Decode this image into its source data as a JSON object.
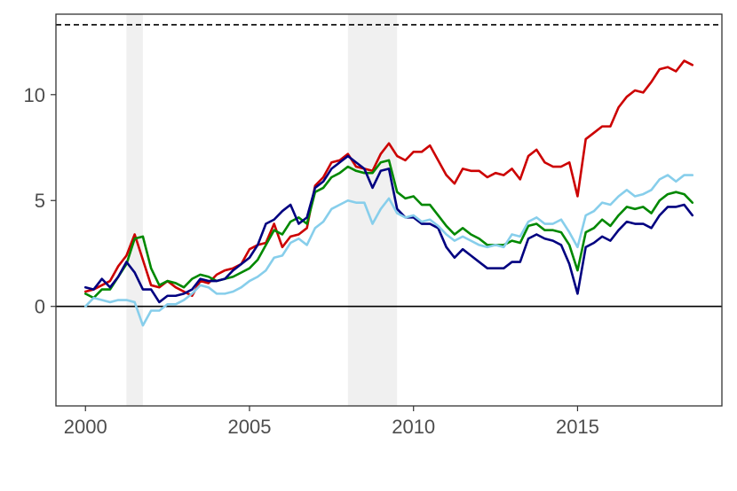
{
  "chart_data": {
    "type": "line",
    "title": "",
    "xlabel": "",
    "ylabel": "",
    "xlim": [
      1999.1,
      2019.4
    ],
    "ylim": [
      -4.7,
      13.8
    ],
    "x_ticks": [
      2000,
      2005,
      2010,
      2015
    ],
    "x_tick_labels": [
      "2000",
      "2005",
      "2010",
      "2015"
    ],
    "y_ticks": [
      0,
      5,
      10
    ],
    "y_tick_labels": [
      "0",
      "5",
      "10"
    ],
    "grid": false,
    "legend": "none",
    "recession_bands": [
      [
        2001.25,
        2001.75
      ],
      [
        2008.0,
        2009.5
      ]
    ],
    "reference_lines": [
      {
        "y": 0,
        "style": "solid",
        "color": "#000000"
      },
      {
        "y": 13.3,
        "style": "dashed",
        "color": "#000000"
      }
    ],
    "series": [
      {
        "color": "#cc0000",
        "x": [
          2000.0,
          2000.25,
          2000.5,
          2000.75,
          2001.0,
          2001.25,
          2001.5,
          2001.75,
          2002.0,
          2002.25,
          2002.5,
          2002.75,
          2003.0,
          2003.25,
          2003.5,
          2003.75,
          2004.0,
          2004.25,
          2004.5,
          2004.75,
          2005.0,
          2005.25,
          2005.5,
          2005.75,
          2006.0,
          2006.25,
          2006.5,
          2006.75,
          2007.0,
          2007.25,
          2007.5,
          2007.75,
          2008.0,
          2008.25,
          2008.5,
          2008.75,
          2009.0,
          2009.25,
          2009.5,
          2009.75,
          2010.0,
          2010.25,
          2010.5,
          2010.75,
          2011.0,
          2011.25,
          2011.5,
          2011.75,
          2012.0,
          2012.25,
          2012.5,
          2012.75,
          2013.0,
          2013.25,
          2013.5,
          2013.75,
          2014.0,
          2014.25,
          2014.5,
          2014.75,
          2015.0,
          2015.25,
          2015.5,
          2015.75,
          2016.0,
          2016.25,
          2016.5,
          2016.75,
          2017.0,
          2017.25,
          2017.5,
          2017.75,
          2018.0,
          2018.25,
          2018.5
        ],
        "values": [
          0.7,
          0.8,
          1.0,
          1.2,
          1.9,
          2.4,
          3.4,
          2.2,
          1.0,
          0.9,
          1.2,
          0.9,
          0.7,
          0.5,
          1.2,
          1.1,
          1.5,
          1.7,
          1.8,
          2.0,
          2.7,
          2.9,
          3.0,
          3.9,
          2.8,
          3.3,
          3.4,
          3.7,
          5.7,
          6.1,
          6.8,
          6.9,
          7.2,
          6.6,
          6.5,
          6.4,
          7.2,
          7.7,
          7.1,
          6.9,
          7.3,
          7.3,
          7.6,
          6.9,
          6.2,
          5.8,
          6.5,
          6.4,
          6.4,
          6.1,
          6.3,
          6.2,
          6.5,
          6.0,
          7.1,
          7.4,
          6.8,
          6.6,
          6.6,
          6.8,
          5.2,
          7.9,
          8.2,
          8.5,
          8.5,
          9.4,
          9.9,
          10.2,
          10.1,
          10.6,
          11.2,
          11.3,
          11.1,
          11.6,
          11.4
        ]
      },
      {
        "color": "#008800",
        "x": [
          2000.0,
          2000.25,
          2000.5,
          2000.75,
          2001.0,
          2001.25,
          2001.5,
          2001.75,
          2002.0,
          2002.25,
          2002.5,
          2002.75,
          2003.0,
          2003.25,
          2003.5,
          2003.75,
          2004.0,
          2004.25,
          2004.5,
          2004.75,
          2005.0,
          2005.25,
          2005.5,
          2005.75,
          2006.0,
          2006.25,
          2006.5,
          2006.75,
          2007.0,
          2007.25,
          2007.5,
          2007.75,
          2008.0,
          2008.25,
          2008.5,
          2008.75,
          2009.0,
          2009.25,
          2009.5,
          2009.75,
          2010.0,
          2010.25,
          2010.5,
          2010.75,
          2011.0,
          2011.25,
          2011.5,
          2011.75,
          2012.0,
          2012.25,
          2012.5,
          2012.75,
          2013.0,
          2013.25,
          2013.5,
          2013.75,
          2014.0,
          2014.25,
          2014.5,
          2014.75,
          2015.0,
          2015.25,
          2015.5,
          2015.75,
          2016.0,
          2016.25,
          2016.5,
          2016.75,
          2017.0,
          2017.25,
          2017.5,
          2017.75,
          2018.0,
          2018.25,
          2018.5
        ],
        "values": [
          0.6,
          0.4,
          0.8,
          0.8,
          1.4,
          2.0,
          3.2,
          3.3,
          1.8,
          1.0,
          1.2,
          1.1,
          0.9,
          1.3,
          1.5,
          1.4,
          1.2,
          1.3,
          1.4,
          1.6,
          1.8,
          2.2,
          2.9,
          3.6,
          3.4,
          4.0,
          4.2,
          3.9,
          5.4,
          5.6,
          6.1,
          6.3,
          6.6,
          6.4,
          6.3,
          6.3,
          6.8,
          6.9,
          5.4,
          5.1,
          5.2,
          4.8,
          4.8,
          4.3,
          3.8,
          3.4,
          3.7,
          3.4,
          3.2,
          2.9,
          2.9,
          2.9,
          3.1,
          3.0,
          3.8,
          3.9,
          3.6,
          3.6,
          3.5,
          2.9,
          1.7,
          3.5,
          3.7,
          4.1,
          3.8,
          4.3,
          4.7,
          4.6,
          4.7,
          4.4,
          5.0,
          5.3,
          5.4,
          5.3,
          4.9
        ]
      },
      {
        "color": "#000080",
        "x": [
          2000.0,
          2000.25,
          2000.5,
          2000.75,
          2001.0,
          2001.25,
          2001.5,
          2001.75,
          2002.0,
          2002.25,
          2002.5,
          2002.75,
          2003.0,
          2003.25,
          2003.5,
          2003.75,
          2004.0,
          2004.25,
          2004.5,
          2004.75,
          2005.0,
          2005.25,
          2005.5,
          2005.75,
          2006.0,
          2006.25,
          2006.5,
          2006.75,
          2007.0,
          2007.25,
          2007.5,
          2007.75,
          2008.0,
          2008.25,
          2008.5,
          2008.75,
          2009.0,
          2009.25,
          2009.5,
          2009.75,
          2010.0,
          2010.25,
          2010.5,
          2010.75,
          2011.0,
          2011.25,
          2011.5,
          2011.75,
          2012.0,
          2012.25,
          2012.5,
          2012.75,
          2013.0,
          2013.25,
          2013.5,
          2013.75,
          2014.0,
          2014.25,
          2014.5,
          2014.75,
          2015.0,
          2015.25,
          2015.5,
          2015.75,
          2016.0,
          2016.25,
          2016.5,
          2016.75,
          2017.0,
          2017.25,
          2017.5,
          2017.75,
          2018.0,
          2018.25,
          2018.5
        ],
        "values": [
          0.9,
          0.8,
          1.3,
          0.9,
          1.4,
          2.1,
          1.6,
          0.8,
          0.8,
          0.2,
          0.5,
          0.5,
          0.6,
          0.8,
          1.3,
          1.2,
          1.2,
          1.3,
          1.7,
          2.0,
          2.3,
          2.9,
          3.9,
          4.1,
          4.5,
          4.8,
          3.9,
          4.2,
          5.6,
          5.9,
          6.5,
          6.8,
          7.1,
          6.8,
          6.5,
          5.6,
          6.4,
          6.5,
          4.6,
          4.2,
          4.2,
          3.9,
          3.9,
          3.7,
          2.8,
          2.3,
          2.7,
          2.4,
          2.1,
          1.8,
          1.8,
          1.8,
          2.1,
          2.1,
          3.2,
          3.4,
          3.2,
          3.1,
          2.9,
          2.0,
          0.6,
          2.8,
          3.0,
          3.3,
          3.1,
          3.6,
          4.0,
          3.9,
          3.9,
          3.7,
          4.3,
          4.7,
          4.7,
          4.8,
          4.3
        ]
      },
      {
        "color": "#87ceeb",
        "x": [
          2000.0,
          2000.25,
          2000.5,
          2000.75,
          2001.0,
          2001.25,
          2001.5,
          2001.75,
          2002.0,
          2002.25,
          2002.5,
          2002.75,
          2003.0,
          2003.25,
          2003.5,
          2003.75,
          2004.0,
          2004.25,
          2004.5,
          2004.75,
          2005.0,
          2005.25,
          2005.5,
          2005.75,
          2006.0,
          2006.25,
          2006.5,
          2006.75,
          2007.0,
          2007.25,
          2007.5,
          2007.75,
          2008.0,
          2008.25,
          2008.5,
          2008.75,
          2009.0,
          2009.25,
          2009.5,
          2009.75,
          2010.0,
          2010.25,
          2010.5,
          2010.75,
          2011.0,
          2011.25,
          2011.5,
          2011.75,
          2012.0,
          2012.25,
          2012.5,
          2012.75,
          2013.0,
          2013.25,
          2013.5,
          2013.75,
          2014.0,
          2014.25,
          2014.5,
          2014.75,
          2015.0,
          2015.25,
          2015.5,
          2015.75,
          2016.0,
          2016.25,
          2016.5,
          2016.75,
          2017.0,
          2017.25,
          2017.5,
          2017.75,
          2018.0,
          2018.25,
          2018.5
        ],
        "values": [
          0.0,
          0.4,
          0.3,
          0.2,
          0.3,
          0.3,
          0.2,
          -0.9,
          -0.2,
          -0.2,
          0.1,
          0.1,
          0.3,
          0.6,
          1.0,
          0.9,
          0.6,
          0.6,
          0.7,
          0.9,
          1.2,
          1.4,
          1.7,
          2.3,
          2.4,
          3.0,
          3.2,
          2.9,
          3.7,
          4.0,
          4.6,
          4.8,
          5.0,
          4.9,
          4.9,
          3.9,
          4.6,
          5.1,
          4.4,
          4.2,
          4.3,
          4.0,
          4.1,
          3.8,
          3.4,
          3.1,
          3.3,
          3.1,
          2.9,
          2.8,
          2.9,
          2.8,
          3.4,
          3.3,
          4.0,
          4.2,
          3.9,
          3.9,
          4.1,
          3.5,
          2.8,
          4.3,
          4.5,
          4.9,
          4.8,
          5.2,
          5.5,
          5.2,
          5.3,
          5.5,
          6.0,
          6.2,
          5.9,
          6.2,
          6.2
        ]
      }
    ]
  }
}
